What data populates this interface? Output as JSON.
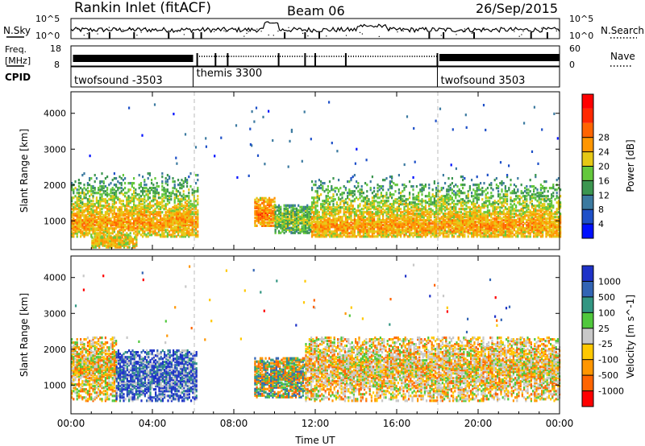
{
  "header": {
    "station": "Rankin Inlet (fitACF)",
    "beam": "Beam 06",
    "date": "26/Sep/2015"
  },
  "top_panels": {
    "nsky": {
      "left_label": "N.Sky",
      "right_label": "N.Search",
      "left_ticks": [
        "10^5",
        "10^0"
      ],
      "right_ticks": [
        "10^5",
        "10^0"
      ]
    },
    "freq": {
      "left_label_line1": "Freq.",
      "left_label_line2": "[MHz]",
      "right_label": "Nave",
      "left_ticks": [
        "18",
        "8"
      ],
      "right_ticks": [
        "60",
        "0"
      ]
    },
    "cpid": {
      "label": "CPID",
      "segments": [
        {
          "name": "twofsound -3503",
          "start_hour": 0,
          "end_hour": 6
        },
        {
          "name": "themis 3300",
          "start_hour": 6,
          "end_hour": 18
        },
        {
          "name": "twofsound 3503",
          "start_hour": 18,
          "end_hour": 24
        }
      ]
    }
  },
  "chart_data": [
    {
      "type": "heatmap",
      "panel": "power",
      "ylabel": "Slant Range [km]",
      "xlim": [
        0,
        24
      ],
      "ylim": [
        200,
        4600
      ],
      "yticks": [
        "1000",
        "2000",
        "3000",
        "4000"
      ],
      "colorbar": {
        "label": "Power [dB]",
        "ticks": [
          "4",
          "8",
          "12",
          "16",
          "20",
          "24",
          "28"
        ],
        "range": [
          0,
          30
        ],
        "colors": [
          "#0010ff",
          "#1e50c8",
          "#3c7aa0",
          "#3c9650",
          "#64c83c",
          "#e6c814",
          "#ff9600",
          "#ff6400",
          "#ff2800",
          "#ff0000"
        ]
      },
      "echo_regions": [
        {
          "start_hour": 0.0,
          "end_hour": 6.2,
          "range_lo": 600,
          "range_hi": 2400,
          "peak_range": 1000,
          "level": 20
        },
        {
          "start_hour": 1.0,
          "end_hour": 3.2,
          "range_lo": 300,
          "range_hi": 600,
          "peak_range": 450,
          "level": 18
        },
        {
          "start_hour": 9.0,
          "end_hour": 10.0,
          "range_lo": 900,
          "range_hi": 1700,
          "peak_range": 1250,
          "level": 22
        },
        {
          "start_hour": 10.0,
          "end_hour": 11.8,
          "range_lo": 700,
          "range_hi": 1500,
          "peak_range": 1050,
          "level": 14
        },
        {
          "start_hour": 11.8,
          "end_hour": 24.0,
          "range_lo": 600,
          "range_hi": 2400,
          "peak_range": 900,
          "level": 20
        }
      ]
    },
    {
      "type": "heatmap",
      "panel": "velocity",
      "xlabel": "Time UT",
      "ylabel": "Slant Range [km]",
      "xlim": [
        0,
        24
      ],
      "xticks": [
        "00:00",
        "04:00",
        "08:00",
        "12:00",
        "16:00",
        "20:00",
        "00:00"
      ],
      "ylim": [
        200,
        4600
      ],
      "yticks": [
        "1000",
        "2000",
        "3000",
        "4000"
      ],
      "colorbar": {
        "label": "Velocity [m s^-1]",
        "ticks": [
          "1000",
          "500",
          "100",
          "25",
          "-25",
          "-100",
          "-500",
          "-1000"
        ],
        "colors": [
          "#1e32c8",
          "#3264b4",
          "#329682",
          "#50c83c",
          "#c8c8c8",
          "#ffc800",
          "#ff9600",
          "#ff6400",
          "#ff0000"
        ]
      },
      "echo_regions": [
        {
          "start_hour": 0.0,
          "end_hour": 2.2,
          "range_lo": 600,
          "range_hi": 2400,
          "dominant": "orange"
        },
        {
          "start_hour": 2.2,
          "end_hour": 6.2,
          "range_lo": 600,
          "range_hi": 2000,
          "dominant": "blue"
        },
        {
          "start_hour": 9.0,
          "end_hour": 11.5,
          "range_lo": 700,
          "range_hi": 1800,
          "dominant": "green-orange"
        },
        {
          "start_hour": 11.5,
          "end_hour": 24.0,
          "range_lo": 600,
          "range_hi": 2400,
          "dominant": "orange-grey"
        }
      ]
    }
  ]
}
